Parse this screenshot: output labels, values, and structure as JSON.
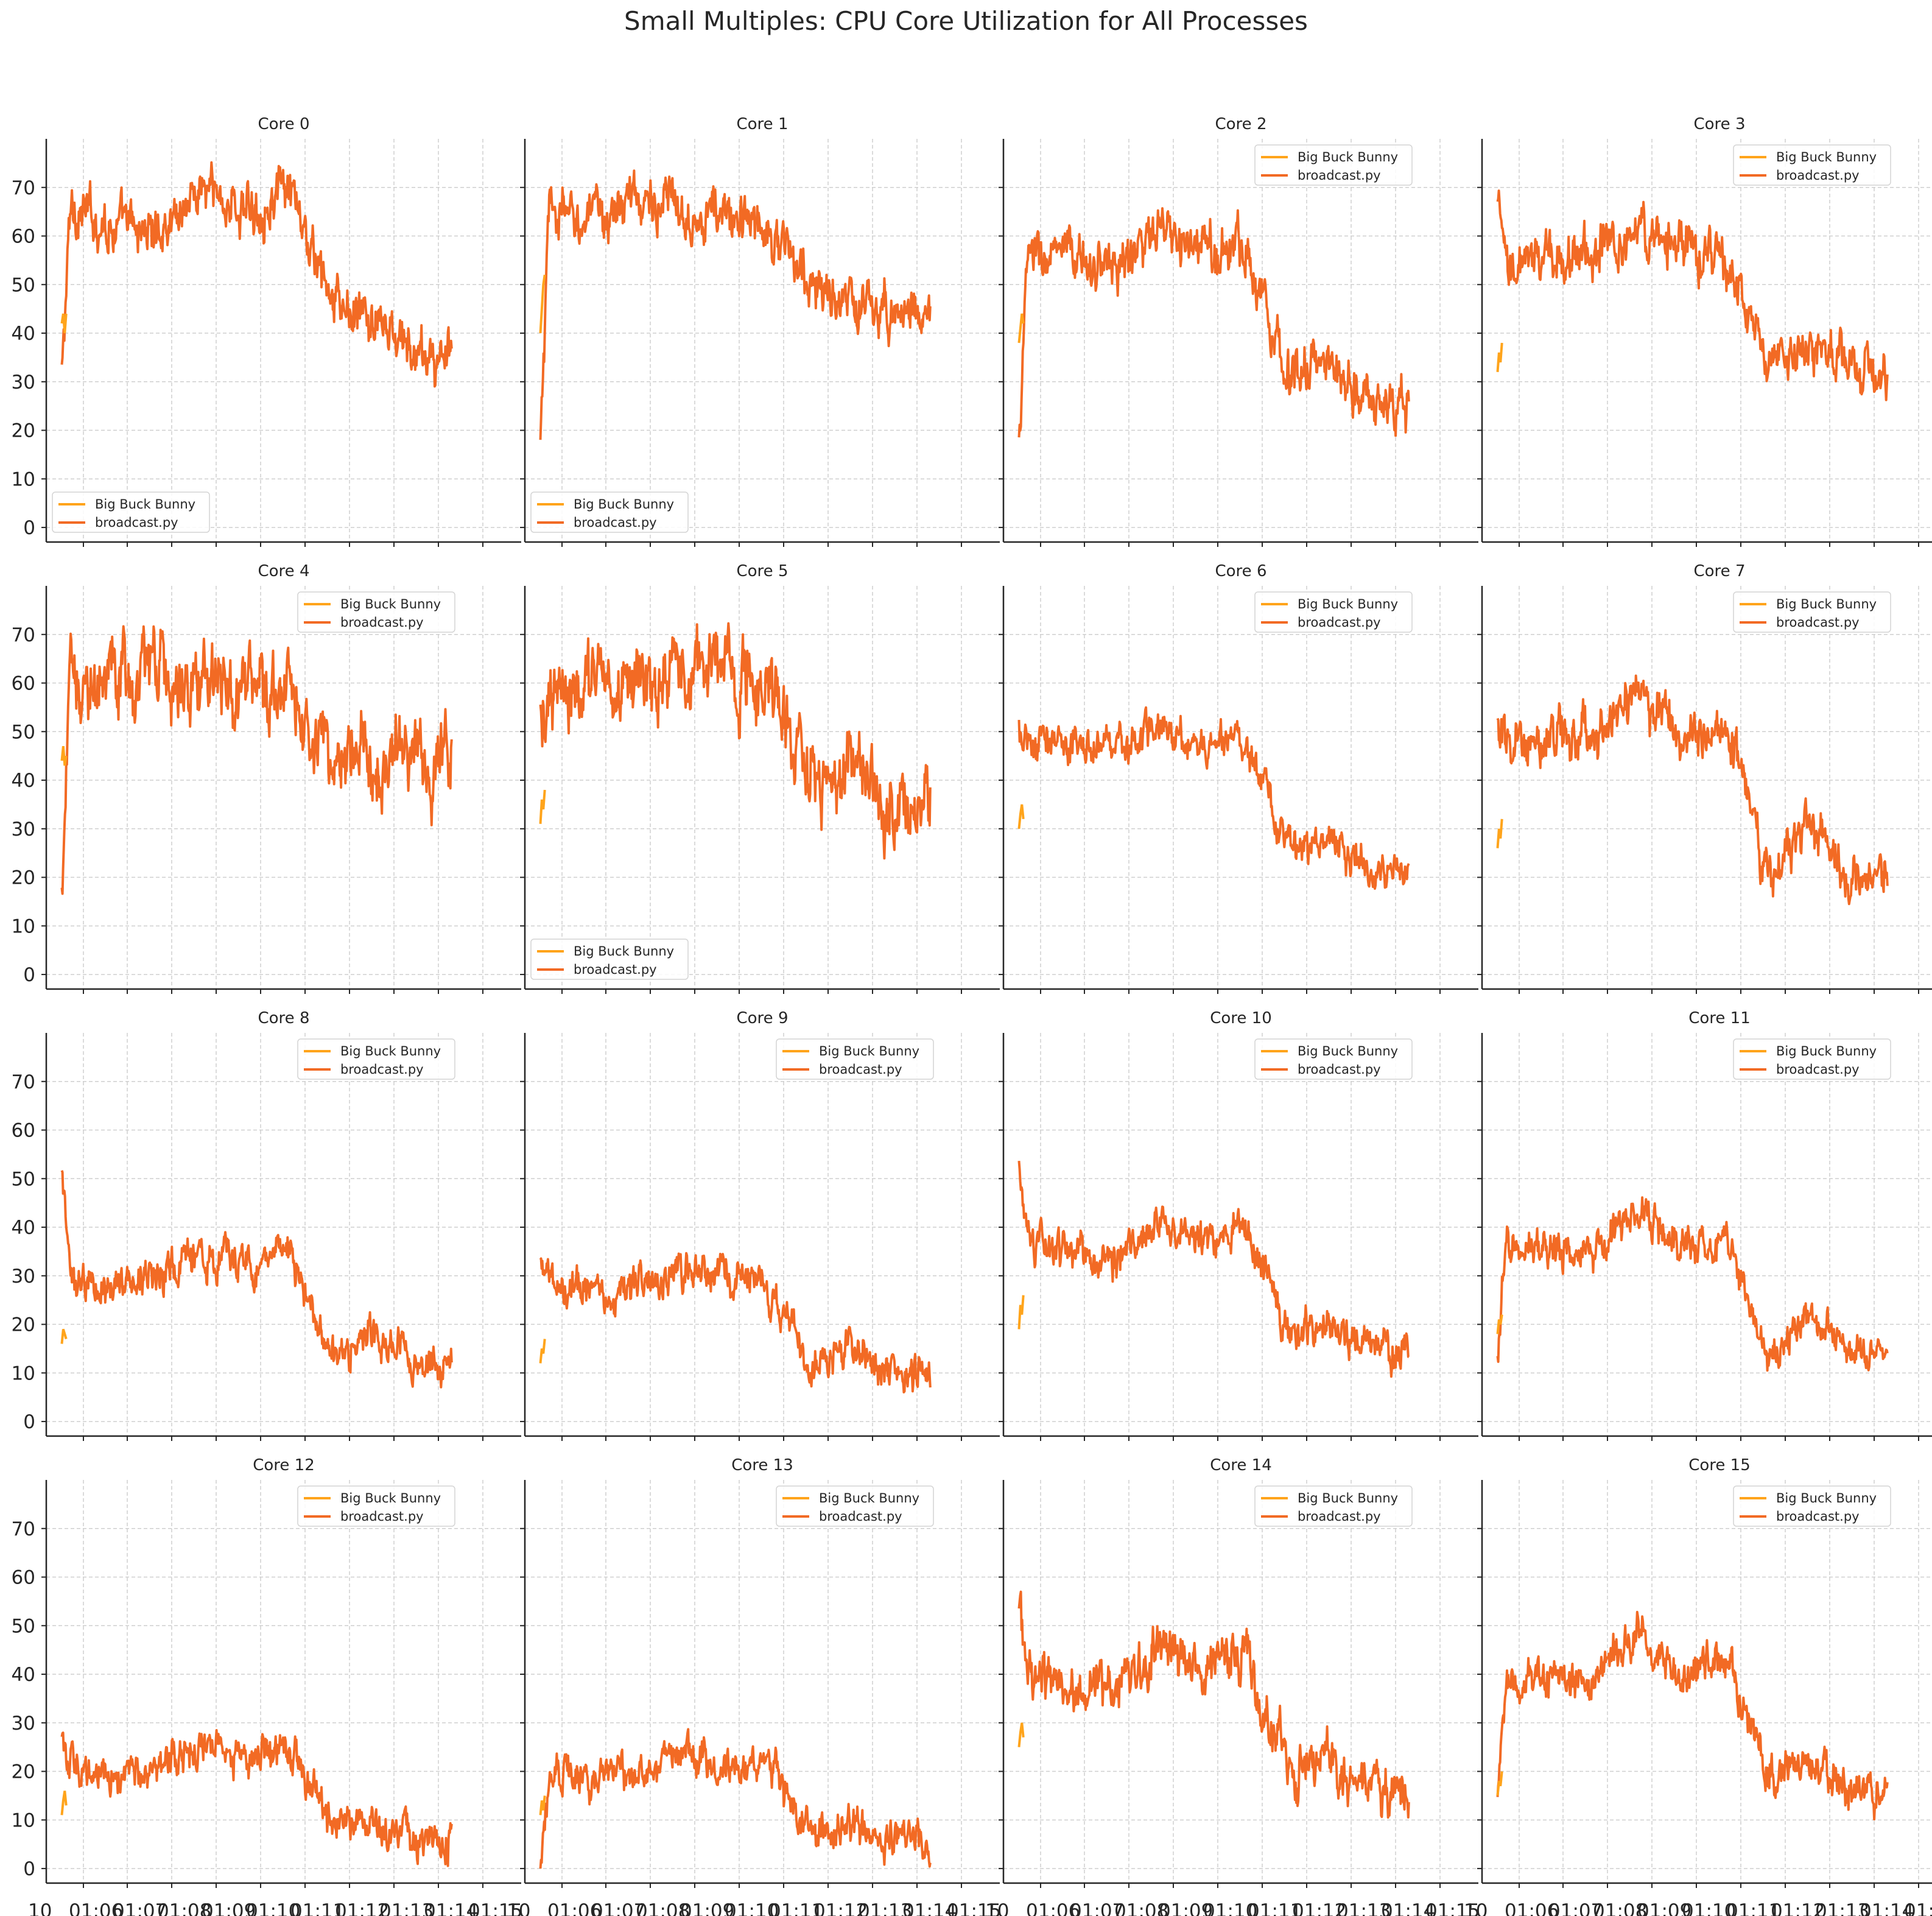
{
  "title": "Small Multiples: CPU Core Utilization for All Processes",
  "colors": {
    "Big Buck Bunny": "#ffa41b",
    "broadcast.py": "#f26a24",
    "grid": "#cfcfcf",
    "axis": "#262626"
  },
  "xtick_labels": [
    "10 01:06",
    "10 01:07",
    "10 01:08",
    "10 01:09",
    "10 01:10",
    "10 01:11",
    "10 01:12",
    "10 01:13",
    "10 01:14",
    "10 01:15"
  ],
  "xtick_visible": [
    "10",
    "01:06",
    "01:07",
    "01:08",
    "01:09",
    "01:10",
    "01:11",
    "01:12",
    "01:13",
    "01:14",
    "01:15"
  ],
  "chart_data": [
    {
      "type": "line",
      "title": "Core 0",
      "legend": "lower-left",
      "ylim": [
        -3,
        80
      ],
      "yticks": [
        0,
        10,
        20,
        30,
        40,
        50,
        60,
        70
      ],
      "grid": true,
      "x": [
        "01:05:48",
        "01:06",
        "01:07",
        "01:08",
        "01:09",
        "01:10",
        "01:11",
        "01:12",
        "01:13",
        "01:14"
      ],
      "series": [
        {
          "name": "Big Buck Bunny",
          "x": [
            "01:05:48",
            "01:05:50",
            "01:05:52",
            "01:05:54"
          ],
          "values": [
            42,
            44,
            40,
            44
          ]
        },
        {
          "name": "broadcast.py",
          "values": [
            31,
            66,
            62,
            61,
            70,
            65,
            69,
            46,
            42,
            35
          ],
          "volatility": 4
        }
      ]
    },
    {
      "type": "line",
      "title": "Core 1",
      "legend": "lower-left",
      "ylim": [
        -3,
        80
      ],
      "yticks": [
        0,
        10,
        20,
        30,
        40,
        50,
        60,
        70
      ],
      "grid": true,
      "x": [
        "01:05:48",
        "01:06",
        "01:07",
        "01:08",
        "01:09",
        "01:10",
        "01:11",
        "01:12",
        "01:13",
        "01:14"
      ],
      "series": [
        {
          "name": "Big Buck Bunny",
          "x": [
            "01:05:48",
            "01:05:50",
            "01:05:52",
            "01:05:54"
          ],
          "values": [
            40,
            45,
            50,
            52
          ]
        },
        {
          "name": "broadcast.py",
          "values": [
            16,
            65,
            63,
            68,
            66,
            64,
            62,
            50,
            45,
            45
          ],
          "volatility": 4
        }
      ]
    },
    {
      "type": "line",
      "title": "Core 2",
      "legend": "upper-right",
      "ylim": [
        -3,
        80
      ],
      "yticks": [
        0,
        10,
        20,
        30,
        40,
        50,
        60,
        70
      ],
      "grid": true,
      "x": [
        "01:05:48",
        "01:06",
        "01:07",
        "01:08",
        "01:09",
        "01:10",
        "01:11",
        "01:12",
        "01:13",
        "01:14"
      ],
      "series": [
        {
          "name": "Big Buck Bunny",
          "x": [
            "01:05:48",
            "01:05:50",
            "01:05:52",
            "01:05:54"
          ],
          "values": [
            38,
            41,
            44,
            42
          ]
        },
        {
          "name": "broadcast.py",
          "values": [
            17,
            56,
            55,
            54,
            60,
            57,
            58,
            32,
            34,
            25
          ],
          "volatility": 4
        }
      ]
    },
    {
      "type": "line",
      "title": "Core 3",
      "legend": "upper-right",
      "ylim": [
        -3,
        80
      ],
      "yticks": [
        0,
        10,
        20,
        30,
        40,
        50,
        60,
        70
      ],
      "grid": true,
      "x": [
        "01:05:48",
        "01:06",
        "01:07",
        "01:08",
        "01:09",
        "01:10",
        "01:11",
        "01:12",
        "01:13",
        "01:14"
      ],
      "series": [
        {
          "name": "Big Buck Bunny",
          "x": [
            "01:05:48",
            "01:05:50",
            "01:05:52",
            "01:05:54"
          ],
          "values": [
            32,
            36,
            34,
            38
          ]
        },
        {
          "name": "broadcast.py",
          "values": [
            66,
            52,
            56,
            57,
            61,
            58,
            55,
            33,
            38,
            32
          ],
          "volatility": 4
        }
      ]
    },
    {
      "type": "line",
      "title": "Core 4",
      "legend": "upper-right",
      "ylim": [
        -3,
        80
      ],
      "yticks": [
        0,
        10,
        20,
        30,
        40,
        50,
        60,
        70
      ],
      "grid": true,
      "x": [
        "01:05:48",
        "01:06",
        "01:07",
        "01:08",
        "01:09",
        "01:10",
        "01:11",
        "01:12",
        "01:13",
        "01:14"
      ],
      "series": [
        {
          "name": "Big Buck Bunny",
          "x": [
            "01:05:48",
            "01:05:50",
            "01:05:52",
            "01:05:54"
          ],
          "values": [
            44,
            47,
            43,
            45
          ]
        },
        {
          "name": "broadcast.py",
          "values": [
            17,
            61,
            60,
            62,
            60,
            60,
            57,
            45,
            46,
            44
          ],
          "volatility": 6
        }
      ]
    },
    {
      "type": "line",
      "title": "Core 5",
      "legend": "lower-left",
      "ylim": [
        -3,
        80
      ],
      "yticks": [
        0,
        10,
        20,
        30,
        40,
        50,
        60,
        70
      ],
      "grid": true,
      "x": [
        "01:05:48",
        "01:06",
        "01:07",
        "01:08",
        "01:09",
        "01:10",
        "01:11",
        "01:12",
        "01:13",
        "01:14"
      ],
      "series": [
        {
          "name": "Big Buck Bunny",
          "x": [
            "01:05:48",
            "01:05:50",
            "01:05:52",
            "01:05:54"
          ],
          "values": [
            31,
            36,
            34,
            38
          ]
        },
        {
          "name": "broadcast.py",
          "values": [
            50,
            54,
            60,
            58,
            63,
            63,
            62,
            40,
            42,
            35
          ],
          "volatility": 6
        }
      ]
    },
    {
      "type": "line",
      "title": "Core 6",
      "legend": "upper-right",
      "ylim": [
        -3,
        80
      ],
      "yticks": [
        0,
        10,
        20,
        30,
        40,
        50,
        60,
        70
      ],
      "grid": true,
      "x": [
        "01:05:48",
        "01:06",
        "01:07",
        "01:08",
        "01:09",
        "01:10",
        "01:11",
        "01:12",
        "01:13",
        "01:14"
      ],
      "series": [
        {
          "name": "Big Buck Bunny",
          "x": [
            "01:05:48",
            "01:05:50",
            "01:05:52",
            "01:05:54"
          ],
          "values": [
            30,
            33,
            35,
            32
          ]
        },
        {
          "name": "broadcast.py",
          "values": [
            50,
            47,
            48,
            47,
            50,
            48,
            48,
            26,
            27,
            21
          ],
          "volatility": 3
        }
      ]
    },
    {
      "type": "line",
      "title": "Core 7",
      "legend": "upper-right",
      "ylim": [
        -3,
        80
      ],
      "yticks": [
        0,
        10,
        20,
        30,
        40,
        50,
        60,
        70
      ],
      "grid": true,
      "x": [
        "01:05:48",
        "01:06",
        "01:07",
        "01:08",
        "01:09",
        "01:10",
        "01:11",
        "01:12",
        "01:13",
        "01:14"
      ],
      "series": [
        {
          "name": "Big Buck Bunny",
          "x": [
            "01:05:48",
            "01:05:50",
            "01:05:52",
            "01:05:54"
          ],
          "values": [
            26,
            30,
            28,
            32
          ]
        },
        {
          "name": "broadcast.py",
          "values": [
            50,
            48,
            49,
            48,
            59,
            50,
            52,
            22,
            30,
            21
          ],
          "volatility": 4
        }
      ]
    },
    {
      "type": "line",
      "title": "Core 8",
      "legend": "upper-right",
      "ylim": [
        -3,
        80
      ],
      "yticks": [
        0,
        10,
        20,
        30,
        40,
        50,
        60,
        70
      ],
      "grid": true,
      "x": [
        "01:05:48",
        "01:06",
        "01:07",
        "01:08",
        "01:09",
        "01:10",
        "01:11",
        "01:12",
        "01:13",
        "01:14"
      ],
      "series": [
        {
          "name": "Big Buck Bunny",
          "x": [
            "01:05:48",
            "01:05:50",
            "01:05:52",
            "01:05:54"
          ],
          "values": [
            16,
            19,
            18,
            17
          ]
        },
        {
          "name": "broadcast.py",
          "values": [
            50,
            28,
            29,
            30,
            35,
            32,
            35,
            13,
            18,
            12
          ],
          "volatility": 3
        }
      ]
    },
    {
      "type": "line",
      "title": "Core 9",
      "legend": "upper-right",
      "ylim": [
        -3,
        80
      ],
      "yticks": [
        0,
        10,
        20,
        30,
        40,
        50,
        60,
        70
      ],
      "grid": true,
      "x": [
        "01:05:48",
        "01:06",
        "01:07",
        "01:08",
        "01:09",
        "01:10",
        "01:11",
        "01:12",
        "01:13",
        "01:14"
      ],
      "series": [
        {
          "name": "Big Buck Bunny",
          "x": [
            "01:05:48",
            "01:05:50",
            "01:05:52",
            "01:05:54"
          ],
          "values": [
            12,
            15,
            14,
            17
          ]
        },
        {
          "name": "broadcast.py",
          "values": [
            32,
            28,
            27,
            28,
            32,
            30,
            28,
            11,
            15,
            10
          ],
          "volatility": 3
        }
      ]
    },
    {
      "type": "line",
      "title": "Core 10",
      "legend": "upper-right",
      "ylim": [
        -3,
        80
      ],
      "yticks": [
        0,
        10,
        20,
        30,
        40,
        50,
        60,
        70
      ],
      "grid": true,
      "x": [
        "01:05:48",
        "01:06",
        "01:07",
        "01:08",
        "01:09",
        "01:10",
        "01:11",
        "01:12",
        "01:13",
        "01:14"
      ],
      "series": [
        {
          "name": "Big Buck Bunny",
          "x": [
            "01:05:48",
            "01:05:50",
            "01:05:52",
            "01:05:54"
          ],
          "values": [
            19,
            24,
            22,
            26
          ]
        },
        {
          "name": "broadcast.py",
          "values": [
            50,
            37,
            34,
            33,
            42,
            36,
            40,
            18,
            20,
            15
          ],
          "volatility": 3
        }
      ]
    },
    {
      "type": "line",
      "title": "Core 11",
      "legend": "upper-right",
      "ylim": [
        -3,
        80
      ],
      "yticks": [
        0,
        10,
        20,
        30,
        40,
        50,
        60,
        70
      ],
      "grid": true,
      "x": [
        "01:05:48",
        "01:06",
        "01:07",
        "01:08",
        "01:09",
        "01:10",
        "01:11",
        "01:12",
        "01:13",
        "01:14"
      ],
      "series": [
        {
          "name": "Big Buck Bunny",
          "x": [
            "01:05:48",
            "01:05:50",
            "01:05:52",
            "01:05:54"
          ],
          "values": [
            18,
            21,
            20,
            22
          ]
        },
        {
          "name": "broadcast.py",
          "values": [
            15,
            37,
            35,
            35,
            43,
            36,
            37,
            14,
            22,
            14
          ],
          "volatility": 3
        }
      ]
    },
    {
      "type": "line",
      "title": "Core 12",
      "legend": "upper-right",
      "ylim": [
        -3,
        80
      ],
      "yticks": [
        0,
        10,
        20,
        30,
        40,
        50,
        60,
        70
      ],
      "grid": true,
      "x": [
        "01:05:48",
        "01:06",
        "01:07",
        "01:08",
        "01:09",
        "01:10",
        "01:11",
        "01:12",
        "01:13",
        "01:14"
      ],
      "series": [
        {
          "name": "Big Buck Bunny",
          "x": [
            "01:05:48",
            "01:05:50",
            "01:05:52",
            "01:05:54"
          ],
          "values": [
            11,
            14,
            16,
            13
          ]
        },
        {
          "name": "broadcast.py",
          "values": [
            29,
            21,
            20,
            19,
            27,
            22,
            24,
            10,
            9,
            6
          ],
          "volatility": 3
        }
      ]
    },
    {
      "type": "line",
      "title": "Core 13",
      "legend": "upper-right",
      "ylim": [
        -3,
        80
      ],
      "yticks": [
        0,
        10,
        20,
        30,
        40,
        50,
        60,
        70
      ],
      "grid": true,
      "x": [
        "01:05:48",
        "01:06",
        "01:07",
        "01:08",
        "01:09",
        "01:10",
        "01:11",
        "01:12",
        "01:13",
        "01:14"
      ],
      "series": [
        {
          "name": "Big Buck Bunny",
          "x": [
            "01:05:48",
            "01:05:50",
            "01:05:52",
            "01:05:54"
          ],
          "values": [
            11,
            14,
            12,
            15
          ]
        },
        {
          "name": "broadcast.py",
          "values": [
            0,
            18,
            19,
            19,
            25,
            20,
            21,
            8,
            8,
            6
          ],
          "volatility": 3
        }
      ]
    },
    {
      "type": "line",
      "title": "Core 14",
      "legend": "upper-right",
      "ylim": [
        -3,
        80
      ],
      "yticks": [
        0,
        10,
        20,
        30,
        40,
        50,
        60,
        70
      ],
      "grid": true,
      "x": [
        "01:05:48",
        "01:06",
        "01:07",
        "01:08",
        "01:09",
        "01:10",
        "01:11",
        "01:12",
        "01:13",
        "01:14"
      ],
      "series": [
        {
          "name": "Big Buck Bunny",
          "x": [
            "01:05:48",
            "01:05:50",
            "01:05:52",
            "01:05:54"
          ],
          "values": [
            25,
            28,
            30,
            27
          ]
        },
        {
          "name": "broadcast.py",
          "values": [
            57,
            40,
            38,
            37,
            47,
            40,
            44,
            21,
            22,
            16
          ],
          "volatility": 4
        }
      ]
    },
    {
      "type": "line",
      "title": "Core 15",
      "legend": "upper-right",
      "ylim": [
        -3,
        80
      ],
      "yticks": [
        0,
        10,
        20,
        30,
        40,
        50,
        60,
        70
      ],
      "grid": true,
      "x": [
        "01:05:48",
        "01:06",
        "01:07",
        "01:08",
        "01:09",
        "01:10",
        "01:11",
        "01:12",
        "01:13",
        "01:14"
      ],
      "series": [
        {
          "name": "Big Buck Bunny",
          "x": [
            "01:05:48",
            "01:05:50",
            "01:05:52",
            "01:05:54"
          ],
          "values": [
            15,
            18,
            17,
            20
          ]
        },
        {
          "name": "broadcast.py",
          "values": [
            15,
            38,
            39,
            38,
            49,
            40,
            44,
            20,
            22,
            16
          ],
          "volatility": 3
        }
      ]
    }
  ]
}
